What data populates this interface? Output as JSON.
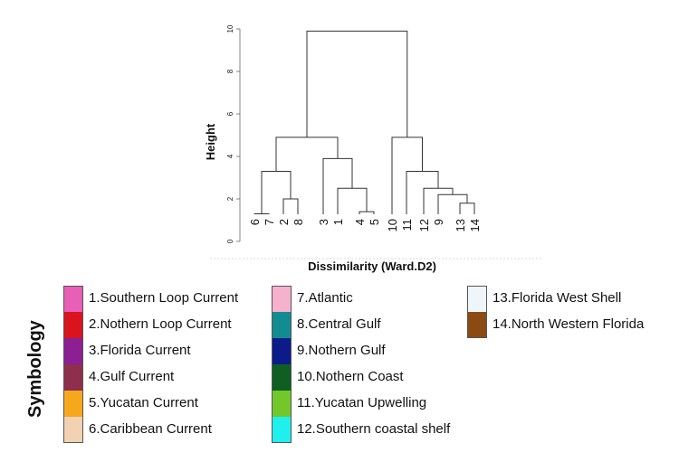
{
  "dendrogram": {
    "ylabel": "Height",
    "xlabel": "Dissimilarity (Ward.D2)",
    "ylim": [
      0,
      10
    ],
    "yticks": [
      "0",
      "2",
      "4",
      "6",
      "8",
      "10"
    ],
    "leaves": [
      "6",
      "7",
      "2",
      "8",
      "3",
      "1",
      "4",
      "5",
      "10",
      "11",
      "12",
      "9",
      "13",
      "14"
    ],
    "merges": [
      {
        "a": "L0",
        "b": "L1",
        "h": 1.3
      },
      {
        "a": "L2",
        "b": "L3",
        "h": 2.0
      },
      {
        "a": "M0",
        "b": "M1",
        "h": 3.3
      },
      {
        "a": "L6",
        "b": "L7",
        "h": 1.4
      },
      {
        "a": "L5",
        "b": "M3",
        "h": 2.5
      },
      {
        "a": "L4",
        "b": "M4",
        "h": 3.9
      },
      {
        "a": "M2",
        "b": "M5",
        "h": 4.9
      },
      {
        "a": "L12",
        "b": "L13",
        "h": 1.8
      },
      {
        "a": "L11",
        "b": "M7",
        "h": 2.2
      },
      {
        "a": "L10",
        "b": "M8",
        "h": 2.5
      },
      {
        "a": "L9",
        "b": "M9",
        "h": 3.3
      },
      {
        "a": "L8",
        "b": "M10",
        "h": 4.9
      },
      {
        "a": "M6",
        "b": "M11",
        "h": 9.9
      }
    ]
  },
  "legend": {
    "title": "Symbology",
    "columns": [
      [
        {
          "label": "1.Southern Loop Current",
          "color": "#e85fb7"
        },
        {
          "label": "2.Nothern Loop Current",
          "color": "#d9141e"
        },
        {
          "label": "3.Florida Current",
          "color": "#8b1f93"
        },
        {
          "label": "4.Gulf Current",
          "color": "#8e2f4d"
        },
        {
          "label": "5.Yucatan Current",
          "color": "#f6a81d"
        },
        {
          "label": "6.Caribbean Current",
          "color": "#f2d2b3"
        }
      ],
      [
        {
          "label": "7.Atlantic",
          "color": "#f6b2cd"
        },
        {
          "label": "8.Central Gulf",
          "color": "#138c91"
        },
        {
          "label": "9.Nothern Gulf",
          "color": "#0b1c8a"
        },
        {
          "label": "10.Nothern Coast",
          "color": "#0f5f22"
        },
        {
          "label": "11.Yucatan Upwelling",
          "color": "#72c72b"
        },
        {
          "label": "12.Southern coastal shelf",
          "color": "#1ff0ee"
        }
      ],
      [
        {
          "label": "13.Florida West Shell",
          "color": "#eef6fb"
        },
        {
          "label": "14.North Western Florida",
          "color": "#8c4a13"
        }
      ]
    ]
  }
}
